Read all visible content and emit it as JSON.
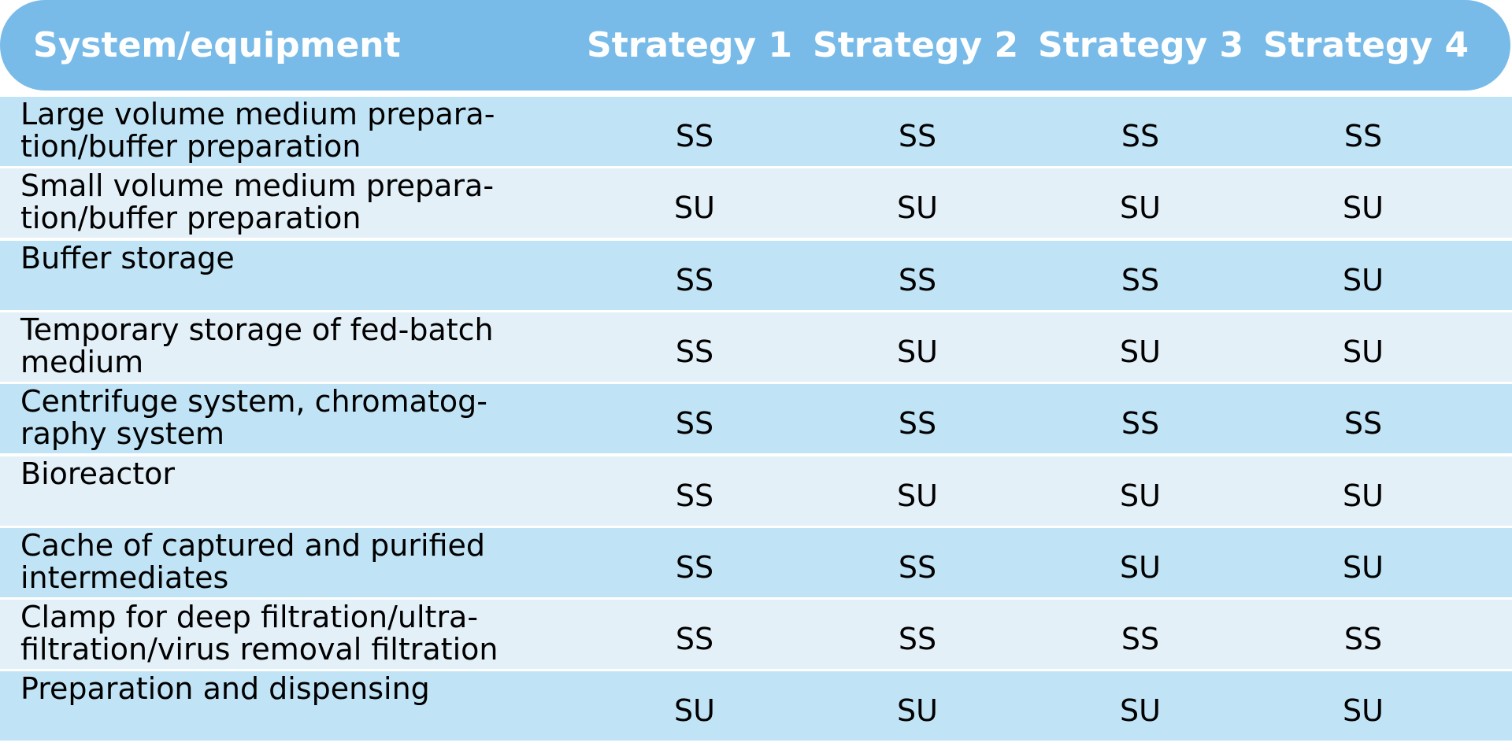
{
  "table": {
    "headers": [
      "System/equipment",
      "Strategy 1",
      "Strategy 2",
      "Strategy 3",
      "Strategy 4"
    ],
    "rows": [
      {
        "label": "Large volume medium prepara-\ntion/buffer preparation",
        "values": [
          "SS",
          "SS",
          "SS",
          "SS"
        ]
      },
      {
        "label": "Small volume medium prepara-\ntion/buffer preparation",
        "values": [
          "SU",
          "SU",
          "SU",
          "SU"
        ]
      },
      {
        "label": "Buffer storage",
        "values": [
          "SS",
          "SS",
          "SS",
          "SU"
        ]
      },
      {
        "label": "Temporary storage of fed-batch\nmedium",
        "values": [
          "SS",
          "SU",
          "SU",
          "SU"
        ]
      },
      {
        "label": "Centrifuge system, chromatog-\nraphy system",
        "values": [
          "SS",
          "SS",
          "SS",
          "SS"
        ]
      },
      {
        "label": "Bioreactor",
        "values": [
          "SS",
          "SU",
          "SU",
          "SU"
        ]
      },
      {
        "label": "Cache of captured and purified\nintermediates",
        "values": [
          "SS",
          "SS",
          "SU",
          "SU"
        ]
      },
      {
        "label": "Clamp for deep filtration/ultra-\nfiltration/virus removal filtration",
        "values": [
          "SS",
          "SS",
          "SS",
          "SS"
        ]
      },
      {
        "label": "Preparation and dispensing",
        "values": [
          "SU",
          "SU",
          "SU",
          "SU"
        ]
      }
    ]
  },
  "colors": {
    "header_bg": "#79bbe8",
    "row_dark": "#c0e4f6",
    "row_light": "#e3f0f8",
    "header_text": "#ffffff"
  }
}
